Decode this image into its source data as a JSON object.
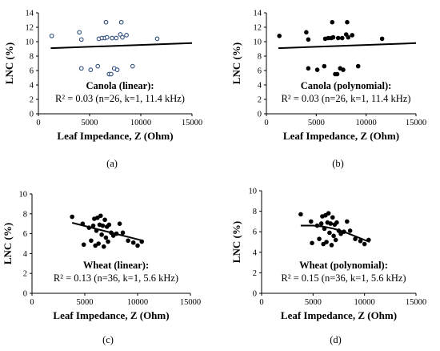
{
  "chart_data": [
    {
      "type": "scatter",
      "panel_label": "(a)",
      "xlabel": "Leaf Impedance, Z (Ohm)",
      "ylabel": "LNC (%)",
      "xlim": [
        0,
        15000
      ],
      "ylim": [
        0,
        14
      ],
      "xticks": [
        "0",
        "5000",
        "10000",
        "15000"
      ],
      "yticks": [
        "0",
        "2",
        "4",
        "6",
        "8",
        "10",
        "12",
        "14"
      ],
      "marker": "open-blue",
      "annotation_line1": "Canola (linear):",
      "annotation_line2": "R² = 0.03 (n=26, k=1, 11.4 kHz)",
      "trend": {
        "kind": "linear",
        "x": [
          1200,
          15000
        ],
        "y": [
          9.1,
          9.8
        ]
      },
      "points": [
        {
          "x": 1300,
          "y": 10.8
        },
        {
          "x": 4000,
          "y": 11.3
        },
        {
          "x": 4200,
          "y": 10.3
        },
        {
          "x": 4200,
          "y": 6.3
        },
        {
          "x": 5100,
          "y": 6.1
        },
        {
          "x": 5800,
          "y": 6.6
        },
        {
          "x": 5900,
          "y": 10.4
        },
        {
          "x": 6200,
          "y": 10.5
        },
        {
          "x": 6500,
          "y": 10.5
        },
        {
          "x": 6600,
          "y": 12.7
        },
        {
          "x": 6700,
          "y": 10.6
        },
        {
          "x": 6900,
          "y": 5.5
        },
        {
          "x": 7100,
          "y": 5.5
        },
        {
          "x": 7200,
          "y": 10.5
        },
        {
          "x": 7400,
          "y": 6.3
        },
        {
          "x": 7600,
          "y": 10.5
        },
        {
          "x": 7700,
          "y": 6.1
        },
        {
          "x": 8000,
          "y": 11.0
        },
        {
          "x": 8100,
          "y": 12.7
        },
        {
          "x": 8200,
          "y": 10.6
        },
        {
          "x": 8600,
          "y": 10.9
        },
        {
          "x": 9200,
          "y": 6.6
        },
        {
          "x": 11600,
          "y": 10.4
        }
      ]
    },
    {
      "type": "scatter",
      "panel_label": "(b)",
      "xlabel": "Leaf Impedance, Z (Ohm)",
      "ylabel": "LNC (%)",
      "xlim": [
        0,
        15000
      ],
      "ylim": [
        0,
        14
      ],
      "xticks": [
        "0",
        "5000",
        "10000",
        "15000"
      ],
      "yticks": [
        "0",
        "2",
        "4",
        "6",
        "8",
        "10",
        "12",
        "14"
      ],
      "marker": "filled-black",
      "annotation_line1": "Canola (polynomial):",
      "annotation_line2": "R² = 0.03 (n=26, k=1, 11.4 kHz)",
      "trend": {
        "kind": "linear",
        "x": [
          1200,
          15000
        ],
        "y": [
          9.1,
          9.8
        ]
      },
      "points": [
        {
          "x": 1300,
          "y": 10.8
        },
        {
          "x": 4000,
          "y": 11.3
        },
        {
          "x": 4200,
          "y": 10.3
        },
        {
          "x": 4200,
          "y": 6.3
        },
        {
          "x": 5100,
          "y": 6.1
        },
        {
          "x": 5800,
          "y": 6.6
        },
        {
          "x": 5900,
          "y": 10.4
        },
        {
          "x": 6200,
          "y": 10.5
        },
        {
          "x": 6500,
          "y": 10.5
        },
        {
          "x": 6600,
          "y": 12.7
        },
        {
          "x": 6700,
          "y": 10.6
        },
        {
          "x": 6900,
          "y": 5.5
        },
        {
          "x": 7100,
          "y": 5.5
        },
        {
          "x": 7200,
          "y": 10.5
        },
        {
          "x": 7400,
          "y": 6.3
        },
        {
          "x": 7600,
          "y": 10.5
        },
        {
          "x": 7700,
          "y": 6.1
        },
        {
          "x": 8000,
          "y": 11.0
        },
        {
          "x": 8100,
          "y": 12.7
        },
        {
          "x": 8200,
          "y": 10.6
        },
        {
          "x": 8600,
          "y": 10.9
        },
        {
          "x": 9200,
          "y": 6.6
        },
        {
          "x": 11600,
          "y": 10.4
        }
      ]
    },
    {
      "type": "scatter",
      "panel_label": "(c)",
      "xlabel": "Leaf Impedance, Z (Ohm)",
      "ylabel": "LNC (%)",
      "xlim": [
        0,
        15000
      ],
      "ylim": [
        0,
        10
      ],
      "xticks": [
        "0",
        "5000",
        "10000",
        "15000"
      ],
      "yticks": [
        "0",
        "2",
        "4",
        "6",
        "8",
        "10"
      ],
      "marker": "filled-black",
      "annotation_line1": "Wheat (linear):",
      "annotation_line2": "R² = 0.13 (n=36, k=1, 5.6 kHz)",
      "trend": {
        "kind": "linear",
        "x": [
          3800,
          10500
        ],
        "y": [
          7.1,
          5.3
        ]
      },
      "points": [
        {
          "x": 3800,
          "y": 7.7
        },
        {
          "x": 4800,
          "y": 7.0
        },
        {
          "x": 4900,
          "y": 4.9
        },
        {
          "x": 5400,
          "y": 6.6
        },
        {
          "x": 5600,
          "y": 5.3
        },
        {
          "x": 5800,
          "y": 6.8
        },
        {
          "x": 5900,
          "y": 7.5
        },
        {
          "x": 6000,
          "y": 4.8
        },
        {
          "x": 6100,
          "y": 6.3
        },
        {
          "x": 6200,
          "y": 7.6
        },
        {
          "x": 6300,
          "y": 5.0
        },
        {
          "x": 6400,
          "y": 6.9
        },
        {
          "x": 6500,
          "y": 7.8
        },
        {
          "x": 6600,
          "y": 5.9
        },
        {
          "x": 6700,
          "y": 6.8
        },
        {
          "x": 6800,
          "y": 4.7
        },
        {
          "x": 6900,
          "y": 7.4
        },
        {
          "x": 7000,
          "y": 5.6
        },
        {
          "x": 7100,
          "y": 6.7
        },
        {
          "x": 7200,
          "y": 5.2
        },
        {
          "x": 7300,
          "y": 6.9
        },
        {
          "x": 7500,
          "y": 6.1
        },
        {
          "x": 7700,
          "y": 5.8
        },
        {
          "x": 8000,
          "y": 6.0
        },
        {
          "x": 8300,
          "y": 7.0
        },
        {
          "x": 8600,
          "y": 6.1
        },
        {
          "x": 9100,
          "y": 5.3
        },
        {
          "x": 9600,
          "y": 5.1
        },
        {
          "x": 10000,
          "y": 4.8
        },
        {
          "x": 10400,
          "y": 5.2
        }
      ]
    },
    {
      "type": "scatter",
      "panel_label": "(d)",
      "xlabel": "Leaf Impedance, Z (Ohm)",
      "ylabel": "LNC (%)",
      "xlim": [
        0,
        15000
      ],
      "ylim": [
        0,
        10
      ],
      "xticks": [
        "0",
        "5000",
        "10000",
        "15000"
      ],
      "yticks": [
        "0",
        "2",
        "4",
        "6",
        "8",
        "10"
      ],
      "marker": "filled-black",
      "annotation_line1": "Wheat (polynomial):",
      "annotation_line2": "R² = 0.15 (n=36, k=1, 5.6 kHz)",
      "trend": {
        "kind": "curve",
        "x": [
          3800,
          5000,
          6000,
          7000,
          8000,
          9000,
          10500
        ],
        "y": [
          6.6,
          6.6,
          6.5,
          6.3,
          6.0,
          5.6,
          5.0
        ]
      },
      "points": [
        {
          "x": 3800,
          "y": 7.7
        },
        {
          "x": 4800,
          "y": 7.0
        },
        {
          "x": 4900,
          "y": 4.9
        },
        {
          "x": 5400,
          "y": 6.6
        },
        {
          "x": 5600,
          "y": 5.3
        },
        {
          "x": 5800,
          "y": 6.8
        },
        {
          "x": 5900,
          "y": 7.5
        },
        {
          "x": 6000,
          "y": 4.8
        },
        {
          "x": 6100,
          "y": 6.3
        },
        {
          "x": 6200,
          "y": 7.6
        },
        {
          "x": 6300,
          "y": 5.0
        },
        {
          "x": 6400,
          "y": 6.9
        },
        {
          "x": 6500,
          "y": 7.8
        },
        {
          "x": 6600,
          "y": 5.9
        },
        {
          "x": 6700,
          "y": 6.8
        },
        {
          "x": 6800,
          "y": 4.7
        },
        {
          "x": 6900,
          "y": 7.4
        },
        {
          "x": 7000,
          "y": 5.6
        },
        {
          "x": 7100,
          "y": 6.7
        },
        {
          "x": 7200,
          "y": 5.2
        },
        {
          "x": 7300,
          "y": 6.9
        },
        {
          "x": 7500,
          "y": 6.1
        },
        {
          "x": 7700,
          "y": 5.8
        },
        {
          "x": 8000,
          "y": 6.0
        },
        {
          "x": 8300,
          "y": 7.0
        },
        {
          "x": 8600,
          "y": 6.1
        },
        {
          "x": 9100,
          "y": 5.3
        },
        {
          "x": 9600,
          "y": 5.1
        },
        {
          "x": 10000,
          "y": 4.8
        },
        {
          "x": 10400,
          "y": 5.2
        }
      ]
    }
  ]
}
